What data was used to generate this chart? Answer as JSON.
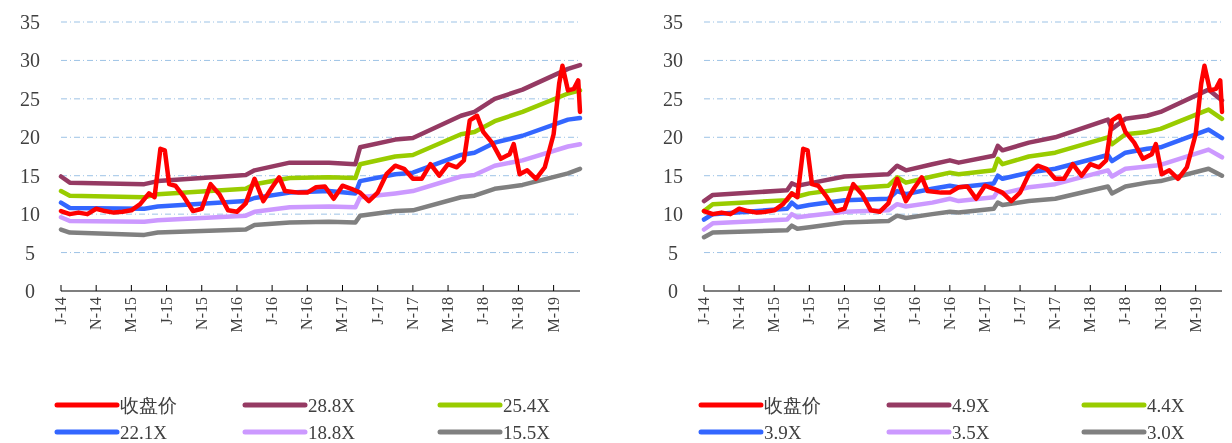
{
  "chart_data": [
    {
      "type": "line",
      "xlim": [
        "2014-07",
        "2019-06"
      ],
      "ylim": [
        0,
        35
      ],
      "yticks": [
        0,
        5,
        10,
        15,
        20,
        25,
        30,
        35
      ],
      "grid": "y",
      "legend": "bottom",
      "marker": "none",
      "line_style": "solid",
      "xticks": [
        {
          "value": "2014-07",
          "label": "J-14"
        },
        {
          "value": "2014-11",
          "label": "N-14"
        },
        {
          "value": "2015-03",
          "label": "M-15"
        },
        {
          "value": "2015-07",
          "label": "J-15"
        },
        {
          "value": "2015-11",
          "label": "N-15"
        },
        {
          "value": "2016-03",
          "label": "M-16"
        },
        {
          "value": "2016-07",
          "label": "J-16"
        },
        {
          "value": "2016-11",
          "label": "N-16"
        },
        {
          "value": "2017-03",
          "label": "M-17"
        },
        {
          "value": "2017-07",
          "label": "J-17"
        },
        {
          "value": "2017-11",
          "label": "N-17"
        },
        {
          "value": "2018-03",
          "label": "M-18"
        },
        {
          "value": "2018-07",
          "label": "J-18"
        },
        {
          "value": "2018-11",
          "label": "N-18"
        },
        {
          "value": "2019-03",
          "label": "M-19"
        }
      ],
      "series": [
        {
          "name": "收盘价",
          "color": "#ff0000",
          "x": [
            "2014-07",
            "2014-08",
            "2014-09",
            "2014-10",
            "2014-11",
            "2014-12",
            "2015-01",
            "2015-02",
            "2015-03",
            "2015-04",
            "2015-05",
            "2015-05-20",
            "2015-06-10",
            "2015-06-25",
            "2015-07-10",
            "2015-08",
            "2015-09",
            "2015-10",
            "2015-11",
            "2015-12",
            "2016-01",
            "2016-02",
            "2016-03",
            "2016-04",
            "2016-05",
            "2016-06",
            "2016-07",
            "2016-07-25",
            "2016-08-15",
            "2016-10",
            "2016-11",
            "2016-12",
            "2017-01",
            "2017-02",
            "2017-03",
            "2017-04",
            "2017-05",
            "2017-06",
            "2017-07",
            "2017-08",
            "2017-09",
            "2017-10",
            "2017-11",
            "2017-12",
            "2018-01",
            "2018-02",
            "2018-03",
            "2018-04",
            "2018-04-25",
            "2018-05-15",
            "2018-06-10",
            "2018-07",
            "2018-08",
            "2018-09",
            "2018-10",
            "2018-10-15",
            "2018-11-05",
            "2018-12",
            "2019-01",
            "2019-02",
            "2019-03",
            "2019-03-20",
            "2019-04",
            "2019-04-20",
            "2019-05-10",
            "2019-05-25",
            "2019-06"
          ],
          "values": [
            10.4,
            10.0,
            10.2,
            10.0,
            10.7,
            10.4,
            10.2,
            10.3,
            10.5,
            11.3,
            12.7,
            12.2,
            18.5,
            18.3,
            13.9,
            13.7,
            12.2,
            10.4,
            10.7,
            13.9,
            12.6,
            10.5,
            10.3,
            11.4,
            14.6,
            11.7,
            13.5,
            14.8,
            13.0,
            12.8,
            12.8,
            13.5,
            13.6,
            12.0,
            13.7,
            13.3,
            12.8,
            11.7,
            12.8,
            15.2,
            16.3,
            15.9,
            14.6,
            14.6,
            16.5,
            15.0,
            16.5,
            16.1,
            17.0,
            22.2,
            22.8,
            20.7,
            19.3,
            17.2,
            17.8,
            19.1,
            15.2,
            15.7,
            14.6,
            16.1,
            20.4,
            27.0,
            29.3,
            26.1,
            26.3,
            27.4,
            23.3
          ]
        },
        {
          "name": "28.8X",
          "color": "#953a63",
          "x": [
            "2014-07",
            "2014-08",
            "2015-04-15",
            "2015-06",
            "2016-04",
            "2016-05",
            "2016-09",
            "2017-01-15",
            "2017-04-15",
            "2017-05",
            "2017-09",
            "2017-11",
            "2018-04-15",
            "2018-06",
            "2018-08-10",
            "2018-11-15",
            "2019-04-20",
            "2019-06"
          ],
          "values": [
            14.9,
            14.1,
            13.9,
            14.3,
            15.1,
            15.7,
            16.7,
            16.7,
            16.5,
            18.7,
            19.7,
            19.9,
            22.8,
            23.3,
            25.0,
            26.2,
            28.9,
            29.4
          ]
        },
        {
          "name": "25.4X",
          "color": "#99cc00",
          "x": [
            "2014-07",
            "2014-08",
            "2015-04-15",
            "2015-06",
            "2016-04",
            "2016-05",
            "2016-09",
            "2017-01-15",
            "2017-04-15",
            "2017-05",
            "2017-09",
            "2017-11",
            "2018-04-15",
            "2018-06",
            "2018-08-10",
            "2018-11-15",
            "2019-04-20",
            "2019-06"
          ],
          "values": [
            13.0,
            12.4,
            12.2,
            12.6,
            13.3,
            13.9,
            14.7,
            14.8,
            14.7,
            16.5,
            17.5,
            17.7,
            20.4,
            20.7,
            22.1,
            23.3,
            25.7,
            26.1
          ]
        },
        {
          "name": "22.1X",
          "color": "#3366ff",
          "x": [
            "2014-07",
            "2014-08",
            "2015-04-15",
            "2015-06",
            "2016-04",
            "2016-05",
            "2016-09",
            "2017-01-15",
            "2017-04-15",
            "2017-05",
            "2017-09",
            "2017-11",
            "2018-04-15",
            "2018-06",
            "2018-08-10",
            "2018-11-15",
            "2019-04-20",
            "2019-06"
          ],
          "values": [
            11.5,
            10.8,
            10.7,
            11.0,
            11.7,
            12.1,
            12.8,
            13.0,
            12.7,
            14.3,
            15.2,
            15.4,
            17.7,
            18.0,
            19.3,
            20.2,
            22.3,
            22.5
          ]
        },
        {
          "name": "18.8X",
          "color": "#cc99ff",
          "x": [
            "2014-07",
            "2014-08",
            "2015-04-15",
            "2015-06",
            "2016-04",
            "2016-05",
            "2016-09",
            "2017-01-15",
            "2017-04-15",
            "2017-05",
            "2017-09",
            "2017-11",
            "2018-04-15",
            "2018-06",
            "2018-08-10",
            "2018-11-15",
            "2019-04-20",
            "2019-06"
          ],
          "values": [
            9.6,
            9.1,
            9.0,
            9.2,
            9.8,
            10.3,
            10.9,
            11.0,
            10.9,
            12.2,
            12.7,
            13.0,
            14.9,
            15.1,
            16.3,
            17.0,
            18.8,
            19.1
          ]
        },
        {
          "name": "15.5X",
          "color": "#808080",
          "x": [
            "2014-07",
            "2014-08",
            "2015-04-15",
            "2015-06",
            "2016-04",
            "2016-05",
            "2016-09",
            "2017-01-15",
            "2017-04-15",
            "2017-05",
            "2017-09",
            "2017-11",
            "2018-04-15",
            "2018-06",
            "2018-08-10",
            "2018-11-15",
            "2019-04-20",
            "2019-06"
          ],
          "values": [
            8.0,
            7.6,
            7.3,
            7.6,
            8.0,
            8.6,
            8.9,
            9.0,
            8.9,
            9.8,
            10.4,
            10.5,
            12.2,
            12.4,
            13.3,
            13.8,
            15.3,
            15.9
          ]
        }
      ]
    },
    {
      "type": "line",
      "xlim": [
        "2014-07",
        "2019-06"
      ],
      "ylim": [
        0,
        35
      ],
      "yticks": [
        0,
        5,
        10,
        15,
        20,
        25,
        30,
        35
      ],
      "grid": "y",
      "legend": "bottom",
      "marker": "none",
      "line_style": "solid",
      "xticks": [
        {
          "value": "2014-07",
          "label": "J-14"
        },
        {
          "value": "2014-11",
          "label": "N-14"
        },
        {
          "value": "2015-03",
          "label": "M-15"
        },
        {
          "value": "2015-07",
          "label": "J-15"
        },
        {
          "value": "2015-11",
          "label": "N-15"
        },
        {
          "value": "2016-03",
          "label": "M-16"
        },
        {
          "value": "2016-07",
          "label": "J-16"
        },
        {
          "value": "2016-11",
          "label": "N-16"
        },
        {
          "value": "2017-03",
          "label": "M-17"
        },
        {
          "value": "2017-07",
          "label": "J-17"
        },
        {
          "value": "2017-11",
          "label": "N-17"
        },
        {
          "value": "2018-03",
          "label": "M-18"
        },
        {
          "value": "2018-07",
          "label": "J-18"
        },
        {
          "value": "2018-11",
          "label": "N-18"
        },
        {
          "value": "2019-03",
          "label": "M-19"
        }
      ],
      "series": [
        {
          "name": "收盘价",
          "color": "#ff0000",
          "x": [
            "2014-07",
            "2014-08",
            "2014-09",
            "2014-10",
            "2014-11",
            "2014-12",
            "2015-01",
            "2015-02",
            "2015-03",
            "2015-04",
            "2015-05",
            "2015-05-20",
            "2015-06-10",
            "2015-06-25",
            "2015-07-10",
            "2015-08",
            "2015-09",
            "2015-10",
            "2015-11",
            "2015-12",
            "2016-01",
            "2016-02",
            "2016-03",
            "2016-04",
            "2016-05",
            "2016-06",
            "2016-07",
            "2016-07-25",
            "2016-08-15",
            "2016-10",
            "2016-11",
            "2016-12",
            "2017-01",
            "2017-02",
            "2017-03",
            "2017-04",
            "2017-05",
            "2017-06",
            "2017-07",
            "2017-08",
            "2017-09",
            "2017-10",
            "2017-11",
            "2017-12",
            "2018-01",
            "2018-02",
            "2018-03",
            "2018-04",
            "2018-04-25",
            "2018-05-15",
            "2018-06-10",
            "2018-07",
            "2018-08",
            "2018-09",
            "2018-10",
            "2018-10-15",
            "2018-11-05",
            "2018-12",
            "2019-01",
            "2019-02",
            "2019-03",
            "2019-03-20",
            "2019-04",
            "2019-04-20",
            "2019-05-10",
            "2019-05-25",
            "2019-06"
          ],
          "values": [
            10.4,
            10.0,
            10.2,
            10.0,
            10.7,
            10.4,
            10.2,
            10.3,
            10.5,
            11.3,
            12.7,
            12.2,
            18.5,
            18.3,
            13.9,
            13.7,
            12.2,
            10.4,
            10.7,
            13.9,
            12.6,
            10.5,
            10.3,
            11.4,
            14.6,
            11.7,
            13.5,
            14.8,
            13.0,
            12.8,
            12.8,
            13.5,
            13.6,
            12.0,
            13.7,
            13.3,
            12.8,
            11.7,
            12.8,
            15.2,
            16.3,
            15.9,
            14.6,
            14.6,
            16.5,
            15.0,
            16.5,
            16.1,
            17.0,
            22.2,
            22.8,
            20.7,
            19.3,
            17.2,
            17.8,
            19.1,
            15.2,
            15.7,
            14.6,
            16.1,
            20.4,
            27.0,
            29.3,
            26.1,
            26.3,
            27.4,
            23.3
          ]
        },
        {
          "name": "4.9X",
          "color": "#953a63",
          "x": [
            "2014-07",
            "2014-08",
            "2015-04-15",
            "2015-05",
            "2015-05-20",
            "2015-07",
            "2015-11",
            "2016-04",
            "2016-05",
            "2016-06",
            "2016-09",
            "2016-11",
            "2016-12",
            "2017-04",
            "2017-04-15",
            "2017-05",
            "2017-08",
            "2017-11",
            "2018-05",
            "2018-05-15",
            "2018-07",
            "2018-09-15",
            "2018-11",
            "2019-04-15",
            "2019-06"
          ],
          "values": [
            11.7,
            12.5,
            13.1,
            14.0,
            13.7,
            14.0,
            14.9,
            15.2,
            16.3,
            15.7,
            16.5,
            17.0,
            16.7,
            17.6,
            18.9,
            18.3,
            19.3,
            20.0,
            22.3,
            21.1,
            22.4,
            22.8,
            23.3,
            26.2,
            24.8
          ]
        },
        {
          "name": "4.4X",
          "color": "#99cc00",
          "x": [
            "2014-07",
            "2014-08",
            "2015-04-15",
            "2015-05",
            "2015-05-20",
            "2015-07",
            "2015-11",
            "2016-04",
            "2016-05",
            "2016-06",
            "2016-09",
            "2016-11",
            "2016-12",
            "2017-04",
            "2017-04-15",
            "2017-05",
            "2017-08",
            "2017-11",
            "2018-05",
            "2018-05-15",
            "2018-07",
            "2018-09-15",
            "2018-11",
            "2019-04-15",
            "2019-06"
          ],
          "values": [
            10.4,
            11.3,
            11.8,
            12.7,
            12.3,
            12.7,
            13.3,
            13.7,
            14.8,
            14.1,
            14.9,
            15.4,
            15.2,
            15.7,
            17.2,
            16.5,
            17.5,
            18.0,
            20.0,
            19.1,
            20.4,
            20.7,
            21.1,
            23.6,
            22.4
          ]
        },
        {
          "name": "3.9X",
          "color": "#3366ff",
          "x": [
            "2014-07",
            "2014-08",
            "2015-04-15",
            "2015-05",
            "2015-05-20",
            "2015-07",
            "2015-11",
            "2016-04",
            "2016-05",
            "2016-06",
            "2016-09",
            "2016-11",
            "2016-12",
            "2017-04",
            "2017-04-15",
            "2017-05",
            "2017-08",
            "2017-11",
            "2018-05",
            "2018-05-15",
            "2018-07",
            "2018-09-15",
            "2018-11",
            "2019-04-15",
            "2019-06"
          ],
          "values": [
            9.3,
            10.0,
            10.7,
            11.5,
            10.9,
            11.2,
            11.8,
            12.0,
            13.0,
            12.6,
            13.3,
            13.7,
            13.5,
            14.0,
            15.0,
            14.6,
            15.4,
            15.9,
            17.7,
            16.9,
            18.0,
            18.5,
            18.7,
            21.0,
            19.9
          ]
        },
        {
          "name": "3.5X",
          "color": "#cc99ff",
          "x": [
            "2014-07",
            "2014-08",
            "2015-04-15",
            "2015-05",
            "2015-05-20",
            "2015-07",
            "2015-11",
            "2016-04",
            "2016-05",
            "2016-06",
            "2016-09",
            "2016-11",
            "2016-12",
            "2017-04",
            "2017-04-15",
            "2017-05",
            "2017-08",
            "2017-11",
            "2018-05",
            "2018-05-15",
            "2018-07",
            "2018-09-15",
            "2018-11",
            "2019-04-15",
            "2019-06"
          ],
          "values": [
            8.0,
            8.8,
            9.3,
            10.0,
            9.6,
            9.8,
            10.3,
            10.5,
            11.3,
            11.0,
            11.5,
            12.0,
            11.7,
            12.2,
            13.0,
            12.7,
            13.5,
            13.9,
            15.7,
            14.9,
            15.9,
            16.2,
            16.4,
            18.4,
            17.4
          ]
        },
        {
          "name": "3.0X",
          "color": "#808080",
          "x": [
            "2014-07",
            "2014-08",
            "2015-04-15",
            "2015-05",
            "2015-05-20",
            "2015-07",
            "2015-11",
            "2016-04",
            "2016-05",
            "2016-06",
            "2016-09",
            "2016-11",
            "2016-12",
            "2017-04",
            "2017-04-15",
            "2017-05",
            "2017-08",
            "2017-11",
            "2018-05",
            "2018-05-15",
            "2018-07",
            "2018-09-15",
            "2018-11",
            "2019-04-15",
            "2019-06"
          ],
          "values": [
            7.0,
            7.6,
            7.9,
            8.5,
            8.1,
            8.3,
            8.9,
            9.1,
            9.8,
            9.5,
            10.0,
            10.3,
            10.2,
            10.7,
            11.5,
            11.2,
            11.7,
            12.0,
            13.6,
            12.7,
            13.6,
            14.1,
            14.3,
            15.9,
            15.0
          ]
        }
      ]
    }
  ]
}
